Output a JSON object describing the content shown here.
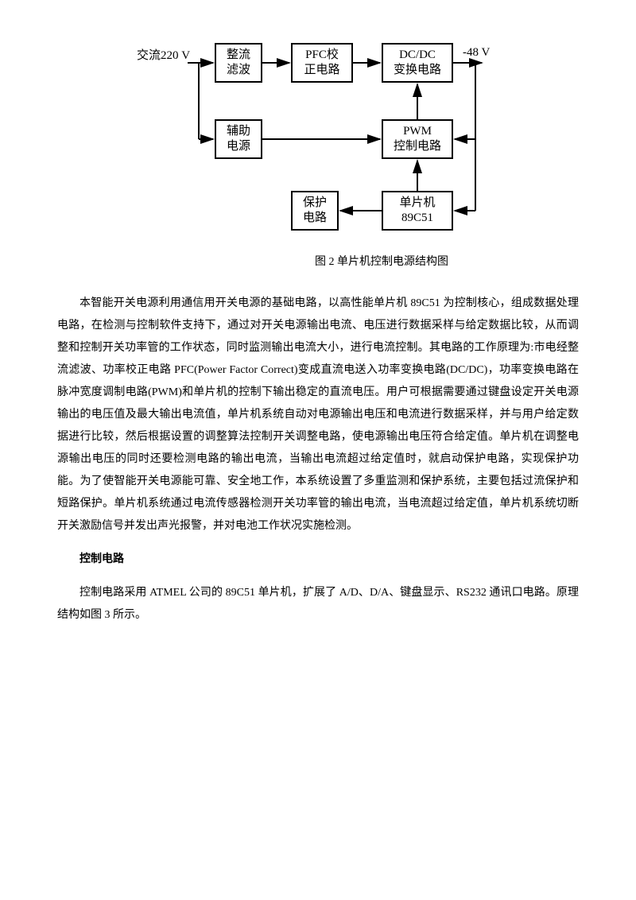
{
  "diagram": {
    "input_label": "交流220 V",
    "output_label": "-48 V",
    "nodes": {
      "rect": "整流\n滤波",
      "pfc": "PFC校\n正电路",
      "dcdc": "DC/DC\n变换电路",
      "aux": "辅助\n电源",
      "pwm": "PWM\n控制电路",
      "prot": "保护\n电路",
      "mcu": "单片机\n89C51"
    },
    "caption": "图 2 单片机控制电源结构图"
  },
  "para1": "本智能开关电源利用通信用开关电源的基础电路，以高性能单片机 89C51 为控制核心，组成数据处理电路，在检测与控制软件支持下，通过对开关电源输出电流、电压进行数据采样与给定数据比较，从而调整和控制开关功率管的工作状态，同时监测输出电流大小，进行电流控制。其电路的工作原理为:市电经整流滤波、功率校正电路 PFC(Power Factor Correct)变成直流电送入功率变换电路(DC/DC)，功率变换电路在脉冲宽度调制电路(PWM)和单片机的控制下输出稳定的直流电压。用户可根据需要通过键盘设定开关电源输出的电压值及最大输出电流值，单片机系统自动对电源输出电压和电流进行数据采样，并与用户给定数据进行比较，然后根据设置的调整算法控制开关调整电路，使电源输出电压符合给定值。单片机在调整电源输出电压的同时还要检测电路的输出电流，当输出电流超过给定值时，就启动保护电路，实现保护功能。为了使智能开关电源能可靠、安全地工作，本系统设置了多重监测和保护系统，主要包括过流保护和短路保护。单片机系统通过电流传感器检测开关功率管的输出电流，当电流超过给定值，单片机系统切断开关激励信号并发出声光报警，并对电池工作状况实施检测。",
  "heading": "控制电路",
  "para2": "控制电路采用 ATMEL 公司的 89C51 单片机，扩展了 A/D、D/A、键盘显示、RS232 通讯口电路。原理结构如图 3 所示。"
}
